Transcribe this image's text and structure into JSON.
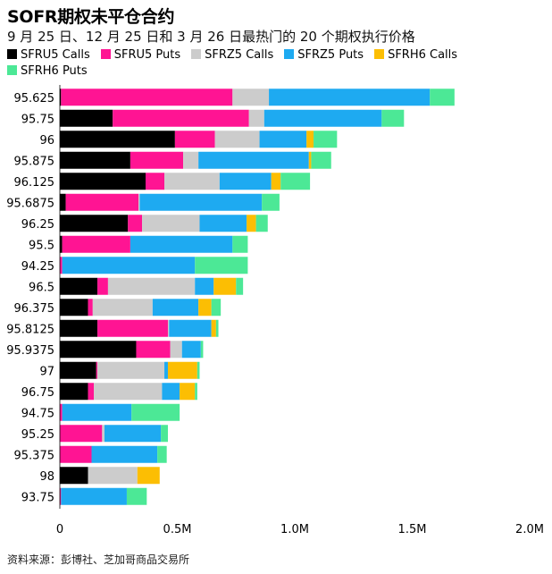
{
  "chart_data": {
    "type": "bar",
    "orientation": "horizontal",
    "stacked": true,
    "title": "SOFR期权未平仓合约",
    "subtitle": "9 月 25 日、12 月 25 日和 3 月 26 日最热门的 20 个期权执行价格",
    "xlabel": "",
    "ylabel": "",
    "xlim": [
      0,
      2000000
    ],
    "xticks": [
      0,
      500000,
      1000000,
      1500000,
      2000000
    ],
    "xtick_labels": [
      "0",
      "0.5M",
      "1.0M",
      "1.5M",
      "2.0M"
    ],
    "legend_position": "top",
    "categories": [
      "95.625",
      "95.75",
      "96",
      "95.875",
      "96.125",
      "95.6875",
      "96.25",
      "95.5",
      "94.25",
      "96.5",
      "96.375",
      "95.8125",
      "95.9375",
      "97",
      "96.75",
      "94.75",
      "95.25",
      "95.375",
      "98",
      "93.75"
    ],
    "series": [
      {
        "name": "SFRU5 Calls",
        "color": "#000000",
        "values": [
          5000,
          225000,
          490000,
          300000,
          365000,
          25000,
          290000,
          10000,
          0,
          160000,
          120000,
          160000,
          325000,
          155000,
          120000,
          0,
          0,
          0,
          120000,
          0
        ]
      },
      {
        "name": "SFRU5 Puts",
        "color": "#ff1493",
        "values": [
          730000,
          580000,
          170000,
          225000,
          80000,
          310000,
          60000,
          290000,
          10000,
          45000,
          20000,
          300000,
          145000,
          5000,
          25000,
          10000,
          180000,
          135000,
          0,
          5000
        ]
      },
      {
        "name": "SFRZ5 Calls",
        "color": "#cccccc",
        "values": [
          155000,
          65000,
          190000,
          65000,
          235000,
          5000,
          245000,
          0,
          0,
          370000,
          255000,
          5000,
          50000,
          285000,
          290000,
          0,
          10000,
          0,
          210000,
          0
        ]
      },
      {
        "name": "SFRZ5 Puts",
        "color": "#1eaaf1",
        "values": [
          685000,
          500000,
          200000,
          470000,
          220000,
          520000,
          200000,
          435000,
          565000,
          80000,
          195000,
          180000,
          80000,
          15000,
          75000,
          295000,
          240000,
          280000,
          0,
          280000
        ]
      },
      {
        "name": "SFRH6 Calls",
        "color": "#fcbe03",
        "values": [
          0,
          0,
          30000,
          10000,
          40000,
          0,
          40000,
          0,
          0,
          95000,
          55000,
          20000,
          0,
          125000,
          65000,
          0,
          0,
          0,
          95000,
          0
        ]
      },
      {
        "name": "SFRH6 Puts",
        "color": "#4ce896",
        "values": [
          105000,
          95000,
          100000,
          85000,
          125000,
          75000,
          50000,
          65000,
          225000,
          30000,
          40000,
          10000,
          10000,
          10000,
          10000,
          205000,
          30000,
          40000,
          0,
          85000
        ]
      }
    ],
    "grid": false
  },
  "source": "资料来源：彭博社、芝加哥商品交易所"
}
